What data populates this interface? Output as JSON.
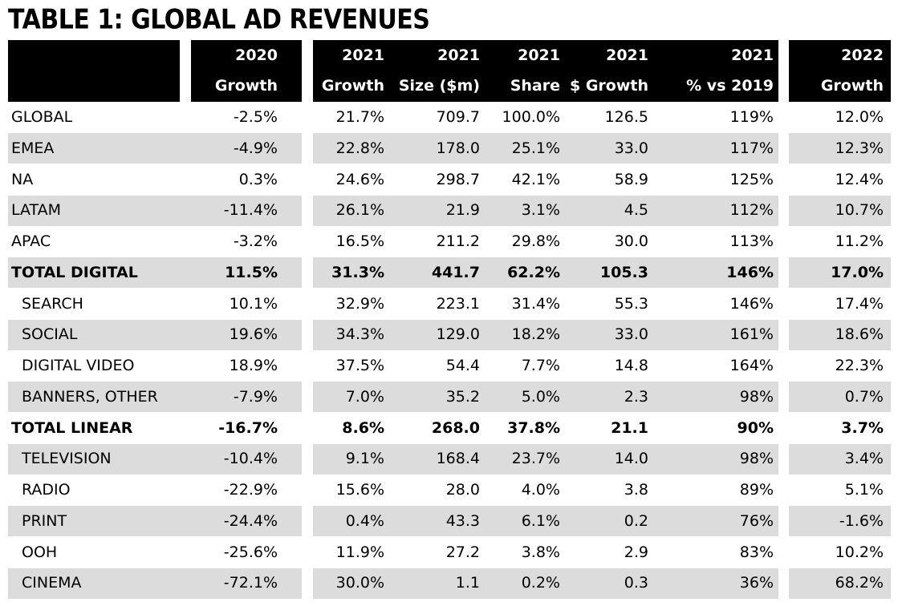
{
  "chart_data": {
    "type": "table",
    "title": "TABLE 1: GLOBAL AD REVENUES",
    "headers": [
      {
        "line1": "2020",
        "line2": "Growth"
      },
      {
        "line1": "2021",
        "line2": "Growth"
      },
      {
        "line1": "2021",
        "line2": "Size ($m)"
      },
      {
        "line1": "2021",
        "line2": "Share"
      },
      {
        "line1": "2021",
        "line2": "$ Growth"
      },
      {
        "line1": "2021",
        "line2": "% vs 2019"
      },
      {
        "line1": "2022",
        "line2": "Growth"
      }
    ],
    "rows": [
      {
        "label": "GLOBAL",
        "indent": false,
        "bold": false,
        "values": [
          "-2.5%",
          "21.7%",
          "709.7",
          "100.0%",
          "126.5",
          "119%",
          "12.0%"
        ]
      },
      {
        "label": "EMEA",
        "indent": false,
        "bold": false,
        "values": [
          "-4.9%",
          "22.8%",
          "178.0",
          "25.1%",
          "33.0",
          "117%",
          "12.3%"
        ]
      },
      {
        "label": "NA",
        "indent": false,
        "bold": false,
        "values": [
          "0.3%",
          "24.6%",
          "298.7",
          "42.1%",
          "58.9",
          "125%",
          "12.4%"
        ]
      },
      {
        "label": "LATAM",
        "indent": false,
        "bold": false,
        "values": [
          "-11.4%",
          "26.1%",
          "21.9",
          "3.1%",
          "4.5",
          "112%",
          "10.7%"
        ]
      },
      {
        "label": "APAC",
        "indent": false,
        "bold": false,
        "values": [
          "-3.2%",
          "16.5%",
          "211.2",
          "29.8%",
          "30.0",
          "113%",
          "11.2%"
        ]
      },
      {
        "label": "TOTAL DIGITAL",
        "indent": false,
        "bold": true,
        "values": [
          "11.5%",
          "31.3%",
          "441.7",
          "62.2%",
          "105.3",
          "146%",
          "17.0%"
        ]
      },
      {
        "label": "SEARCH",
        "indent": true,
        "bold": false,
        "values": [
          "10.1%",
          "32.9%",
          "223.1",
          "31.4%",
          "55.3",
          "146%",
          "17.4%"
        ]
      },
      {
        "label": "SOCIAL",
        "indent": true,
        "bold": false,
        "values": [
          "19.6%",
          "34.3%",
          "129.0",
          "18.2%",
          "33.0",
          "161%",
          "18.6%"
        ]
      },
      {
        "label": "DIGITAL VIDEO",
        "indent": true,
        "bold": false,
        "values": [
          "18.9%",
          "37.5%",
          "54.4",
          "7.7%",
          "14.8",
          "164%",
          "22.3%"
        ]
      },
      {
        "label": "BANNERS, OTHER",
        "indent": true,
        "bold": false,
        "values": [
          "-7.9%",
          "7.0%",
          "35.2",
          "5.0%",
          "2.3",
          "98%",
          "0.7%"
        ]
      },
      {
        "label": "TOTAL LINEAR",
        "indent": false,
        "bold": true,
        "values": [
          "-16.7%",
          "8.6%",
          "268.0",
          "37.8%",
          "21.1",
          "90%",
          "3.7%"
        ]
      },
      {
        "label": "TELEVISION",
        "indent": true,
        "bold": false,
        "values": [
          "-10.4%",
          "9.1%",
          "168.4",
          "23.7%",
          "14.0",
          "98%",
          "3.4%"
        ]
      },
      {
        "label": "RADIO",
        "indent": true,
        "bold": false,
        "values": [
          "-22.9%",
          "15.6%",
          "28.0",
          "4.0%",
          "3.8",
          "89%",
          "5.1%"
        ]
      },
      {
        "label": "PRINT",
        "indent": true,
        "bold": false,
        "values": [
          "-24.4%",
          "0.4%",
          "43.3",
          "6.1%",
          "0.2",
          "76%",
          "-1.6%"
        ]
      },
      {
        "label": "OOH",
        "indent": true,
        "bold": false,
        "values": [
          "-25.6%",
          "11.9%",
          "27.2",
          "3.8%",
          "2.9",
          "83%",
          "10.2%"
        ]
      },
      {
        "label": "CINEMA",
        "indent": true,
        "bold": false,
        "values": [
          "-72.1%",
          "30.0%",
          "1.1",
          "0.2%",
          "0.3",
          "36%",
          "68.2%"
        ]
      }
    ]
  }
}
